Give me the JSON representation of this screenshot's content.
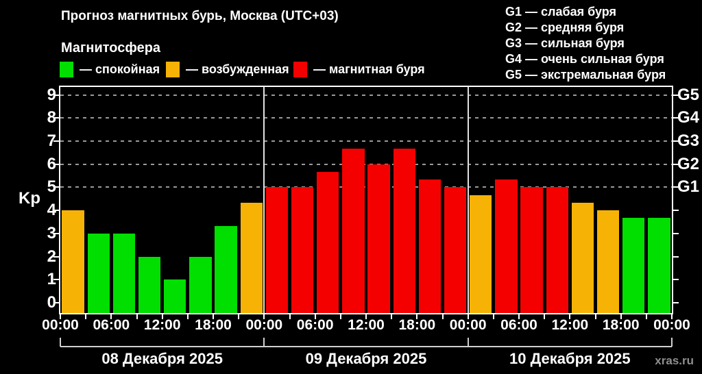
{
  "title": "Прогноз магнитных бурь, Москва (UTC+03)",
  "subtitle": "Магнитосфера",
  "legend": {
    "items": [
      {
        "key": "quiet",
        "label": "— спокойная",
        "color": "#00df00"
      },
      {
        "key": "excited",
        "label": "— возбужденная",
        "color": "#f7b305"
      },
      {
        "key": "storm",
        "label": "— магнитная буря",
        "color": "#f40000"
      }
    ]
  },
  "storm_scale": {
    "items": [
      "G1 — слабая буря",
      "G2 — средняя буря",
      "G3 — сильная буря",
      "G4 — очень сильная буря",
      "G5 — экстремальная буря"
    ]
  },
  "watermark": "xras.ru",
  "chart_data": {
    "type": "bar",
    "title": "Прогноз магнитных бурь, Москва (UTC+03)",
    "xlabel": "",
    "ylabel": "Kp",
    "ylim": [
      -0.45,
      9.35
    ],
    "yticks": [
      0,
      1,
      2,
      3,
      4,
      5,
      6,
      7,
      8,
      9
    ],
    "grid_kp_levels": [
      5,
      6,
      7,
      8,
      9
    ],
    "grid_style": "dashed",
    "legend_position": "top-left",
    "right_axis": [
      {
        "kp": 5,
        "label": "G1"
      },
      {
        "kp": 6,
        "label": "G2"
      },
      {
        "kp": 7,
        "label": "G3"
      },
      {
        "kp": 8,
        "label": "G4"
      },
      {
        "kp": 9,
        "label": "G5"
      }
    ],
    "bar_interval_hours": 3,
    "x_tick_labels": [
      "00:00",
      "06:00",
      "12:00",
      "18:00",
      "00:00",
      "06:00",
      "12:00",
      "18:00",
      "00:00",
      "06:00",
      "12:00",
      "18:00",
      "00:00"
    ],
    "color_thresholds": {
      "excited_from": 4,
      "storm_from": 5
    },
    "colors": {
      "quiet": "#00df00",
      "excited": "#f7b305",
      "storm": "#f40000"
    },
    "days": [
      {
        "date": "08 Декабря 2025",
        "values": [
          4.0,
          3.0,
          3.0,
          2.0,
          1.0,
          2.0,
          3.33,
          4.33
        ]
      },
      {
        "date": "09 Декабря 2025",
        "values": [
          5.0,
          5.0,
          5.67,
          6.67,
          6.0,
          6.67,
          5.33,
          5.0
        ]
      },
      {
        "date": "10 Декабря 2025",
        "values": [
          4.67,
          5.33,
          5.0,
          5.0,
          4.33,
          4.0,
          3.67,
          3.67
        ]
      }
    ]
  }
}
